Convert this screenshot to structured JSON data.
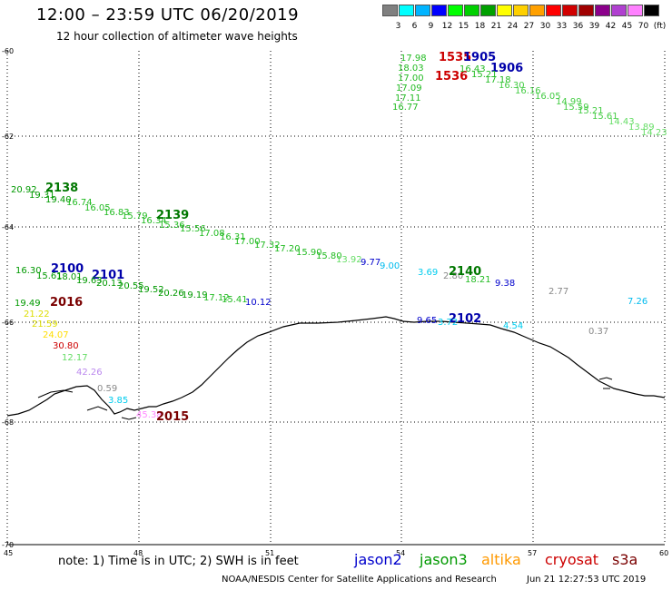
{
  "title": "12:00 – 23:59 UTC 06/20/2019",
  "subtitle": "12 hour collection of altimeter wave heights",
  "legend": {
    "colors": [
      "#808080",
      "#00ffff",
      "#00b4ff",
      "#0000ff",
      "#00ff00",
      "#00d000",
      "#00a000",
      "#ffff00",
      "#ffd000",
      "#ffa000",
      "#ff0000",
      "#d00000",
      "#a00000",
      "#8b008b",
      "#b040d0",
      "#ff80ff",
      "#000000"
    ],
    "values": [
      "3",
      "6",
      "9",
      "12",
      "15",
      "18",
      "21",
      "24",
      "27",
      "30",
      "33",
      "36",
      "39",
      "42",
      "45",
      "70",
      "(ft)"
    ]
  },
  "axes": {
    "x_ticks": [
      "45",
      "48",
      "51",
      "54",
      "57",
      "60"
    ],
    "y_ticks": [
      "-60",
      "-62",
      "-64",
      "-66",
      "-68",
      "-70"
    ]
  },
  "labels": [
    {
      "t": "17.98",
      "c": "#22bb22"
    },
    {
      "t": "18.03",
      "c": "#22bb22"
    },
    {
      "t": "17.00",
      "c": "#22bb22"
    },
    {
      "t": "17.09",
      "c": "#22bb22"
    },
    {
      "t": "17.11",
      "c": "#22bb22"
    },
    {
      "t": "16.77",
      "c": "#22bb22"
    },
    {
      "t": "1535",
      "c": "#cc0000"
    },
    {
      "t": "1536",
      "c": "#cc0000"
    },
    {
      "t": "1905",
      "c": "#0000aa"
    },
    {
      "t": "1906",
      "c": "#0000aa"
    },
    {
      "t": "16.43",
      "c": "#22bb22"
    },
    {
      "t": "15.21",
      "c": "#22bb22"
    },
    {
      "t": "17.18",
      "c": "#22bb22"
    },
    {
      "t": "16.30",
      "c": "#44cc44"
    },
    {
      "t": "16.16",
      "c": "#44cc44"
    },
    {
      "t": "16.05",
      "c": "#44cc44"
    },
    {
      "t": "14.99",
      "c": "#44cc44"
    },
    {
      "t": "15.59",
      "c": "#44cc44"
    },
    {
      "t": "15.21",
      "c": "#44cc44"
    },
    {
      "t": "15.61",
      "c": "#44cc44"
    },
    {
      "t": "14.43",
      "c": "#66dd66"
    },
    {
      "t": "13.89",
      "c": "#66dd66"
    },
    {
      "t": "14.23",
      "c": "#66dd66"
    },
    {
      "t": "20.92",
      "c": "#009900"
    },
    {
      "t": "2138",
      "c": "#007700"
    },
    {
      "t": "19.31",
      "c": "#009900"
    },
    {
      "t": "19.40",
      "c": "#009900"
    },
    {
      "t": "16.74",
      "c": "#22bb22"
    },
    {
      "t": "16.05",
      "c": "#22bb22"
    },
    {
      "t": "16.83",
      "c": "#22bb22"
    },
    {
      "t": "15.79",
      "c": "#22bb22"
    },
    {
      "t": "16.34",
      "c": "#22bb22"
    },
    {
      "t": "2139",
      "c": "#007700"
    },
    {
      "t": "15.36",
      "c": "#22bb22"
    },
    {
      "t": "15.56",
      "c": "#22bb22"
    },
    {
      "t": "17.08",
      "c": "#22bb22"
    },
    {
      "t": "16.31",
      "c": "#22bb22"
    },
    {
      "t": "17.00",
      "c": "#22bb22"
    },
    {
      "t": "17.32",
      "c": "#22bb22"
    },
    {
      "t": "17.20",
      "c": "#22bb22"
    },
    {
      "t": "15.90",
      "c": "#22bb22"
    },
    {
      "t": "15.80",
      "c": "#22bb22"
    },
    {
      "t": "13.92",
      "c": "#66dd66"
    },
    {
      "t": "9.77",
      "c": "#0000cc"
    },
    {
      "t": "9.00",
      "c": "#00bbee"
    },
    {
      "t": "16.30",
      "c": "#009900"
    },
    {
      "t": "2100",
      "c": "#0000aa"
    },
    {
      "t": "15.61",
      "c": "#009900"
    },
    {
      "t": "18.01",
      "c": "#009900"
    },
    {
      "t": "2101",
      "c": "#0000aa"
    },
    {
      "t": "19.63",
      "c": "#009900"
    },
    {
      "t": "20.13",
      "c": "#009900"
    },
    {
      "t": "20.55",
      "c": "#009900"
    },
    {
      "t": "19.52",
      "c": "#009900"
    },
    {
      "t": "20.26",
      "c": "#009900"
    },
    {
      "t": "19.19",
      "c": "#009900"
    },
    {
      "t": "17.12",
      "c": "#22bb22"
    },
    {
      "t": "15.41",
      "c": "#22bb22"
    },
    {
      "t": "10.12",
      "c": "#0000cc"
    },
    {
      "t": "3.69",
      "c": "#00ccee"
    },
    {
      "t": "2.80",
      "c": "#888888"
    },
    {
      "t": "2140",
      "c": "#007700"
    },
    {
      "t": "18.21",
      "c": "#22bb22"
    },
    {
      "t": "9.38",
      "c": "#0000cc"
    },
    {
      "t": "2.77",
      "c": "#888888"
    },
    {
      "t": "7.26",
      "c": "#00bbee"
    },
    {
      "t": "9.65",
      "c": "#0000cc"
    },
    {
      "t": "2102",
      "c": "#0000aa"
    },
    {
      "t": "3.72",
      "c": "#00ccee"
    },
    {
      "t": "4.54",
      "c": "#00ccee"
    },
    {
      "t": "0.37",
      "c": "#888888"
    },
    {
      "t": "19.49",
      "c": "#009900"
    },
    {
      "t": "2016",
      "c": "#7a0000"
    },
    {
      "t": "21.22",
      "c": "#dddd00"
    },
    {
      "t": "21.59",
      "c": "#dddd00"
    },
    {
      "t": "24.07",
      "c": "#ffdd00"
    },
    {
      "t": "30.80",
      "c": "#cc0000"
    },
    {
      "t": "12.17",
      "c": "#66dd66"
    },
    {
      "t": "42.26",
      "c": "#bb88ee"
    },
    {
      "t": "0.59",
      "c": "#888888"
    },
    {
      "t": "3.85",
      "c": "#00ccee"
    },
    {
      "t": "45.38",
      "c": "#ff88ff"
    },
    {
      "t": "2015",
      "c": "#7a0000"
    }
  ],
  "note": "note: 1) Time is in UTC; 2) SWH is in feet",
  "satellites": [
    {
      "name": "jason2",
      "color": "#0000cc"
    },
    {
      "name": "jason3",
      "color": "#009900"
    },
    {
      "name": "altika",
      "color": "#ff9900"
    },
    {
      "name": "cryosat",
      "color": "#cc0000"
    },
    {
      "name": "s3a",
      "color": "#7a0000"
    }
  ],
  "credit_left": "NOAA/NESDIS Center for Satellite Applications and Research",
  "credit_right": "Jun 21 12:27:53 UTC 2019"
}
